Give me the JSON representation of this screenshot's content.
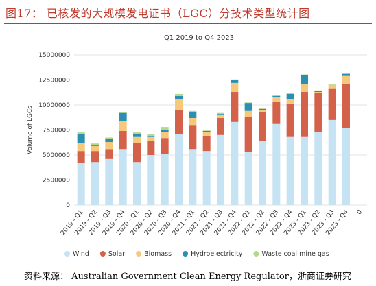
{
  "figure": {
    "title": "图17：  已核发的大规模发电证书（LGC）分技术类型统计图",
    "source": "资料来源：  Australian Government Clean Energy Regulator，浙商证券研究"
  },
  "chart_data": {
    "type": "bar",
    "stacked": true,
    "title": "Q1 2019 to Q4 2023",
    "xlabel": "",
    "ylabel": "Volume of LGCs",
    "ylim": [
      0,
      15000000
    ],
    "yticks": [
      0,
      2500000,
      5000000,
      7500000,
      10000000,
      12500000,
      15000000
    ],
    "ytick_labels": [
      "0",
      "2500000",
      "5000000",
      "7500000",
      "10000000",
      "12500000",
      "15000000"
    ],
    "grid": true,
    "legend_position": "bottom",
    "categories": [
      "2019 - Q1",
      "2019 - Q2",
      "2019 - Q3",
      "2019 - Q4",
      "2020 - Q1",
      "2020 - Q2",
      "2020 - Q3",
      "2020 - Q4",
      "2021 - Q1",
      "2021 - Q2",
      "2021 - Q3",
      "2021 - Q4",
      "2022 - Q1",
      "2022 - Q2",
      "2022 - Q3",
      "2022 - Q4",
      "2023 - Q1",
      "2023 - Q2",
      "2023 - Q3",
      "2023 - Q4",
      "0"
    ],
    "series": [
      {
        "name": "Wind",
        "color": "#c5e3f3",
        "values": [
          4200000,
          4300000,
          4600000,
          5600000,
          4300000,
          5000000,
          5100000,
          7100000,
          5600000,
          5400000,
          7000000,
          8300000,
          5300000,
          6400000,
          8100000,
          6800000,
          6800000,
          7300000,
          8500000,
          7700000,
          0
        ]
      },
      {
        "name": "Solar",
        "color": "#d4614a",
        "values": [
          1200000,
          1100000,
          1000000,
          1800000,
          1900000,
          1400000,
          1600000,
          2400000,
          2400000,
          1500000,
          1700000,
          3000000,
          3500000,
          2900000,
          2200000,
          3300000,
          4500000,
          3900000,
          3100000,
          4400000,
          0
        ]
      },
      {
        "name": "Biomass",
        "color": "#f6c87a",
        "values": [
          800000,
          500000,
          700000,
          1000000,
          600000,
          400000,
          600000,
          1100000,
          700000,
          400000,
          300000,
          900000,
          600000,
          200000,
          500000,
          500000,
          800000,
          100000,
          400000,
          800000,
          0
        ]
      },
      {
        "name": "Hydroelectricity",
        "color": "#2b8fb1",
        "values": [
          900000,
          100000,
          300000,
          800000,
          300000,
          100000,
          200000,
          300000,
          600000,
          100000,
          100000,
          300000,
          800000,
          100000,
          100000,
          500000,
          900000,
          100000,
          0,
          200000,
          0
        ]
      },
      {
        "name": "Waste coal mine gas",
        "color": "#b2d88e",
        "values": [
          150000,
          150000,
          150000,
          100000,
          150000,
          150000,
          300000,
          200000,
          100000,
          50000,
          100000,
          50000,
          50000,
          50000,
          100000,
          100000,
          50000,
          50000,
          100000,
          50000,
          0
        ]
      }
    ]
  }
}
